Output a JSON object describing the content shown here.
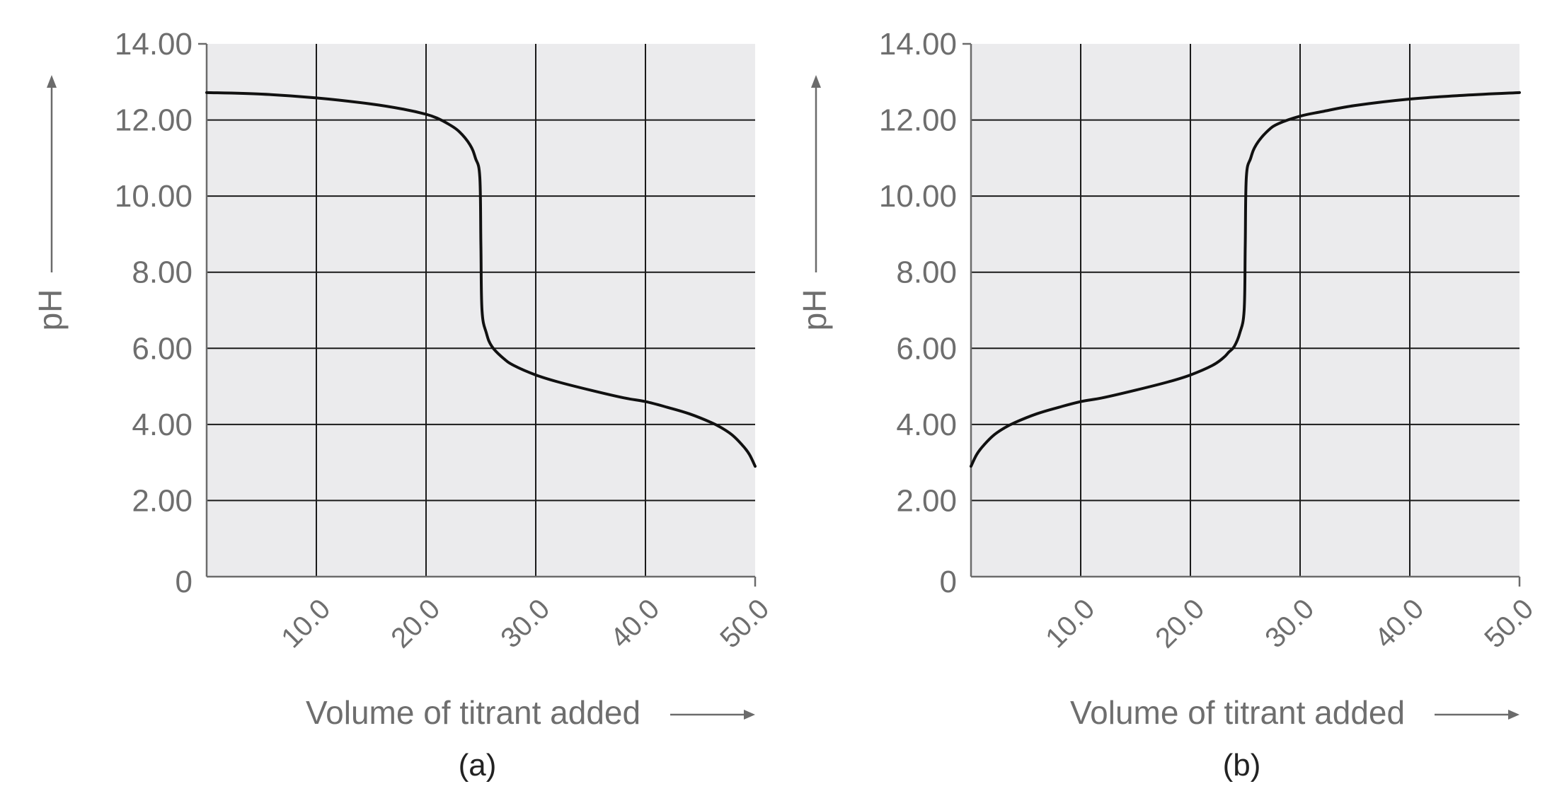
{
  "chart_data": [
    {
      "type": "line",
      "panel": "(a)",
      "title": "",
      "xlabel": "Volume of titrant added",
      "ylabel": "pH",
      "xlim": [
        0,
        50
      ],
      "ylim": [
        0,
        14
      ],
      "grid": true,
      "x_ticks": [
        "10.0",
        "20.0",
        "30.0",
        "40.0",
        "50.0"
      ],
      "y_ticks": [
        "0",
        "2.00",
        "4.00",
        "6.00",
        "8.00",
        "10.00",
        "12.00",
        "14.00"
      ],
      "series": [
        {
          "name": "titration curve",
          "x": [
            0,
            5,
            10,
            15,
            18,
            20,
            21,
            22,
            23,
            24,
            24.5,
            24.9,
            25.0,
            25.1,
            25.5,
            26,
            27,
            28,
            30,
            32,
            35,
            38,
            40,
            42,
            44,
            46,
            47,
            48,
            49,
            49.5,
            50
          ],
          "y": [
            12.72,
            12.68,
            12.58,
            12.42,
            12.28,
            12.15,
            12.05,
            11.9,
            11.7,
            11.35,
            11.0,
            10.5,
            8.7,
            7.0,
            6.4,
            6.05,
            5.75,
            5.55,
            5.3,
            5.12,
            4.9,
            4.7,
            4.6,
            4.45,
            4.28,
            4.05,
            3.9,
            3.7,
            3.4,
            3.2,
            2.9
          ]
        }
      ]
    },
    {
      "type": "line",
      "panel": "(b)",
      "title": "",
      "xlabel": "Volume of titrant added",
      "ylabel": "pH",
      "xlim": [
        0,
        50
      ],
      "ylim": [
        0,
        14
      ],
      "grid": true,
      "x_ticks": [
        "10.0",
        "20.0",
        "30.0",
        "40.0",
        "50.0"
      ],
      "y_ticks": [
        "0",
        "2.00",
        "4.00",
        "6.00",
        "8.00",
        "10.00",
        "12.00",
        "14.00"
      ],
      "series": [
        {
          "name": "titration curve",
          "x": [
            0,
            0.5,
            1,
            2,
            3,
            4,
            6,
            8,
            10,
            12,
            15,
            18,
            20,
            22,
            23,
            23.5,
            24,
            24.5,
            24.9,
            25.0,
            25.1,
            25.5,
            26,
            27,
            28,
            30,
            32,
            35,
            40,
            45,
            50
          ],
          "y": [
            2.9,
            3.2,
            3.4,
            3.7,
            3.9,
            4.05,
            4.28,
            4.45,
            4.6,
            4.7,
            4.9,
            5.12,
            5.3,
            5.55,
            5.75,
            5.9,
            6.05,
            6.4,
            7.0,
            8.7,
            10.5,
            11.0,
            11.35,
            11.7,
            11.9,
            12.1,
            12.22,
            12.38,
            12.55,
            12.65,
            12.72
          ]
        }
      ]
    }
  ]
}
